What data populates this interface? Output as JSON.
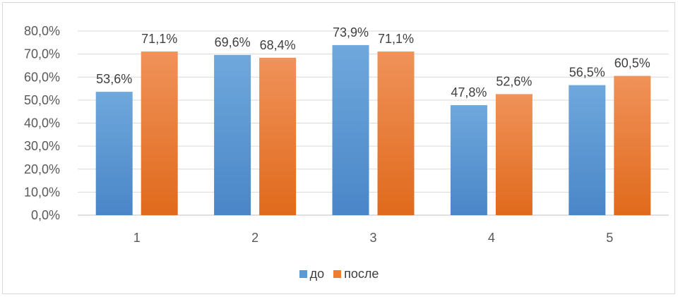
{
  "chart_data": {
    "type": "bar",
    "categories": [
      "1",
      "2",
      "3",
      "4",
      "5"
    ],
    "series": [
      {
        "name": "до",
        "values": [
          53.6,
          69.6,
          73.9,
          47.8,
          56.5
        ],
        "labels": [
          "53,6%",
          "69,6%",
          "73,9%",
          "47,8%",
          "56,5%"
        ],
        "color": "#5b9bd5"
      },
      {
        "name": "после",
        "values": [
          71.1,
          68.4,
          71.1,
          52.6,
          60.5
        ],
        "labels": [
          "71,1%",
          "68,4%",
          "71,1%",
          "52,6%",
          "60,5%"
        ],
        "color": "#ed7d31"
      }
    ],
    "ylim": [
      0,
      80
    ],
    "yticks": [
      "0,0%",
      "10,0%",
      "20,0%",
      "30,0%",
      "40,0%",
      "50,0%",
      "60,0%",
      "70,0%",
      "80,0%"
    ],
    "grid": true,
    "legend": "bottom"
  }
}
